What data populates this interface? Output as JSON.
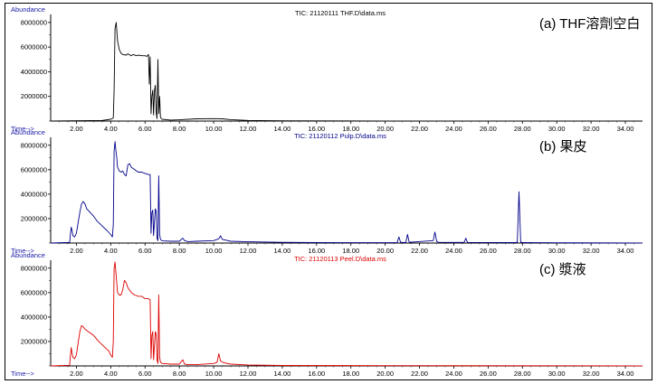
{
  "chart_data": [
    {
      "type": "line",
      "annotation": "(a) THF溶劑空白",
      "header": "TIC: 21120111 THF.D\\data.ms",
      "ylabel": "Abundance",
      "xlabel": "Time-->",
      "color": "#000000",
      "xlim": [
        0.5,
        35.0
      ],
      "ylim": [
        0,
        8500000
      ],
      "y_ticks": [
        "2000000",
        "4000000",
        "6000000",
        "8000000"
      ],
      "x_ticks": [
        "2.00",
        "4.00",
        "6.00",
        "8.00",
        "10.00",
        "12.00",
        "14.00",
        "16.00",
        "18.00",
        "20.00",
        "22.00",
        "24.00",
        "26.00",
        "28.00",
        "30.00",
        "32.00",
        "34.00"
      ],
      "x": [
        0.5,
        3.5,
        4.0,
        4.15,
        4.2,
        4.25,
        4.32,
        4.4,
        4.5,
        4.6,
        4.7,
        4.9,
        5.0,
        5.2,
        5.3,
        5.5,
        5.6,
        5.8,
        6.0,
        6.1,
        6.2,
        6.25,
        6.3,
        6.35,
        6.4,
        6.45,
        6.5,
        6.55,
        6.6,
        6.65,
        6.7,
        6.75,
        6.8,
        6.85,
        6.9,
        7.0,
        7.5,
        8.0,
        9.0,
        10.0,
        10.5,
        11.0,
        12.0,
        14.0,
        20.0,
        35.0
      ],
      "y": [
        0,
        50000,
        150000,
        250000,
        2500000,
        7500000,
        8000000,
        6500000,
        5800000,
        5500000,
        5400000,
        5350000,
        5450000,
        5300000,
        5400000,
        5300000,
        5350000,
        5300000,
        5300000,
        5250000,
        5400000,
        3000000,
        5200000,
        600000,
        2000000,
        2500000,
        500000,
        2500000,
        2900000,
        700000,
        200000,
        5000000,
        600000,
        2000000,
        300000,
        150000,
        80000,
        100000,
        180000,
        200000,
        180000,
        120000,
        50000,
        20000,
        10000,
        10000
      ]
    },
    {
      "type": "line",
      "annotation": "(b) 果皮",
      "header": "TIC: 21120112 Pulp.D\\data.ms",
      "ylabel": "Abundance",
      "xlabel": "Time-->",
      "color": "#00008b",
      "xlim": [
        0.5,
        35.0
      ],
      "ylim": [
        0,
        8500000
      ],
      "y_ticks": [
        "2000000",
        "4000000",
        "6000000",
        "8000000"
      ],
      "x_ticks": [
        "2.00",
        "4.00",
        "6.00",
        "8.00",
        "10.00",
        "12.00",
        "14.00",
        "16.00",
        "18.00",
        "20.00",
        "22.00",
        "24.00",
        "26.00",
        "28.00",
        "30.00",
        "32.00",
        "34.00"
      ],
      "x": [
        0.5,
        1.6,
        1.7,
        1.75,
        1.8,
        1.9,
        2.0,
        2.2,
        2.3,
        2.4,
        2.5,
        2.6,
        2.8,
        3.0,
        3.2,
        3.5,
        3.8,
        4.0,
        4.1,
        4.15,
        4.2,
        4.25,
        4.3,
        4.35,
        4.4,
        4.5,
        4.6,
        4.7,
        4.8,
        4.9,
        5.0,
        5.1,
        5.2,
        5.4,
        5.6,
        5.8,
        6.0,
        6.2,
        6.25,
        6.3,
        6.35,
        6.4,
        6.45,
        6.5,
        6.6,
        6.65,
        6.7,
        6.75,
        6.8,
        6.85,
        6.9,
        7.0,
        7.5,
        8.0,
        8.2,
        8.3,
        8.5,
        9.0,
        10.0,
        10.3,
        10.4,
        10.5,
        11.0,
        12.0,
        14.0,
        16.0,
        18.0,
        20.7,
        20.8,
        20.9,
        21.2,
        21.3,
        21.4,
        22.8,
        22.9,
        23.0,
        23.1,
        24.6,
        24.7,
        24.8,
        27.6,
        27.7,
        27.8,
        27.9,
        28.0,
        30.0,
        35.0
      ],
      "y": [
        0,
        50000,
        1300000,
        1000000,
        600000,
        500000,
        800000,
        2500000,
        3200000,
        3400000,
        3200000,
        2800000,
        2500000,
        2200000,
        1800000,
        1400000,
        1000000,
        700000,
        500000,
        1500000,
        7500000,
        8300000,
        7600000,
        7000000,
        6200000,
        5900000,
        5800000,
        5900000,
        5600000,
        5500000,
        6400000,
        6500000,
        6200000,
        6000000,
        5800000,
        5800000,
        5700000,
        5600000,
        5600000,
        5600000,
        800000,
        2500000,
        2700000,
        600000,
        2800000,
        2600000,
        400000,
        200000,
        5500000,
        700000,
        300000,
        180000,
        150000,
        150000,
        400000,
        200000,
        120000,
        150000,
        200000,
        350000,
        600000,
        300000,
        150000,
        100000,
        60000,
        40000,
        30000,
        40000,
        500000,
        60000,
        40000,
        700000,
        60000,
        200000,
        900000,
        150000,
        60000,
        50000,
        400000,
        50000,
        40000,
        60000,
        4200000,
        80000,
        40000,
        20000,
        10000
      ]
    },
    {
      "type": "line",
      "annotation": "(c) 漿液",
      "header": "TIC: 21120113 Peel.D\\data.ms",
      "ylabel": "Abundance",
      "xlabel": "Time-->",
      "color": "#dd0000",
      "xlim": [
        0.5,
        35.0
      ],
      "ylim": [
        0,
        8500000
      ],
      "y_ticks": [
        "2000000",
        "4000000",
        "6000000",
        "8000000"
      ],
      "x_ticks": [
        "2.00",
        "4.00",
        "6.00",
        "8.00",
        "10.00",
        "12.00",
        "14.00",
        "16.00",
        "18.00",
        "20.00",
        "22.00",
        "24.00",
        "26.00",
        "28.00",
        "30.00",
        "32.00",
        "34.00"
      ],
      "x": [
        0.5,
        1.6,
        1.7,
        1.75,
        1.8,
        1.9,
        2.0,
        2.2,
        2.3,
        2.4,
        2.5,
        2.7,
        3.0,
        3.3,
        3.6,
        3.9,
        4.0,
        4.1,
        4.15,
        4.2,
        4.25,
        4.3,
        4.35,
        4.4,
        4.5,
        4.6,
        4.7,
        4.8,
        4.9,
        5.0,
        5.1,
        5.2,
        5.4,
        5.6,
        5.8,
        6.0,
        6.2,
        6.3,
        6.35,
        6.4,
        6.45,
        6.5,
        6.6,
        6.65,
        6.7,
        6.75,
        6.8,
        6.85,
        6.9,
        7.0,
        7.5,
        8.0,
        8.2,
        8.3,
        8.5,
        9.0,
        10.0,
        10.2,
        10.3,
        10.4,
        10.6,
        11.0,
        12.0,
        14.0,
        20.0,
        35.0
      ],
      "y": [
        0,
        50000,
        1500000,
        1000000,
        700000,
        600000,
        900000,
        2800000,
        3300000,
        3200000,
        3000000,
        2800000,
        2500000,
        2000000,
        1600000,
        1200000,
        900000,
        700000,
        2000000,
        8000000,
        8500000,
        7700000,
        6800000,
        6000000,
        5800000,
        5800000,
        6200000,
        7000000,
        6800000,
        6400000,
        6200000,
        6000000,
        5800000,
        5700000,
        5700000,
        5500000,
        5500000,
        5400000,
        600000,
        2500000,
        2800000,
        500000,
        2800000,
        2600000,
        500000,
        200000,
        5800000,
        700000,
        300000,
        200000,
        150000,
        150000,
        500000,
        150000,
        100000,
        100000,
        200000,
        300000,
        1000000,
        400000,
        250000,
        150000,
        80000,
        40000,
        20000,
        10000
      ]
    }
  ]
}
